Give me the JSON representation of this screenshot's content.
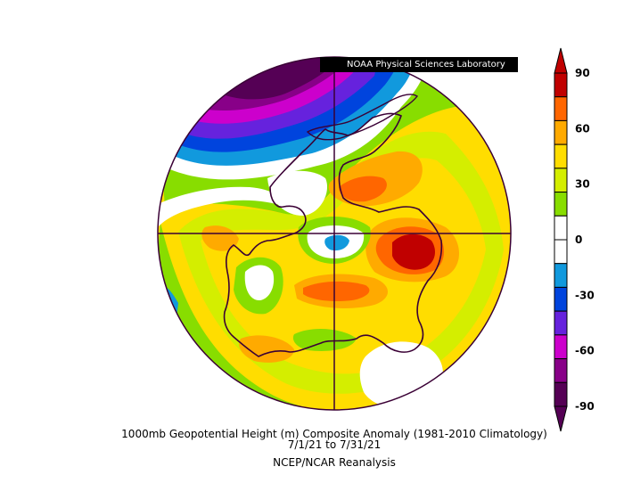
{
  "lab_label": "NOAA Physical Sciences Laboratory",
  "caption": {
    "line1": "1000mb Geopotential Height (m) Composite Anomaly (1981-2010 Climatology)",
    "line2": "7/1/21   to 7/31/21",
    "line3": "NCEP/NCAR Reanalysis"
  },
  "colorbar": {
    "ticks": [
      "90",
      "60",
      "30",
      "0",
      "-30",
      "-60",
      "-90"
    ],
    "colors": [
      "#c00000",
      "#ff6600",
      "#ffaa00",
      "#ffdd00",
      "#d4ee00",
      "#88dd00",
      "#ffffff",
      "#ffffff",
      "#1199dd",
      "#0044dd",
      "#6622dd",
      "#cc00cc",
      "#880088",
      "#550055"
    ]
  },
  "map": {
    "projection": "south-polar-stereographic",
    "region": "Antarctica"
  }
}
